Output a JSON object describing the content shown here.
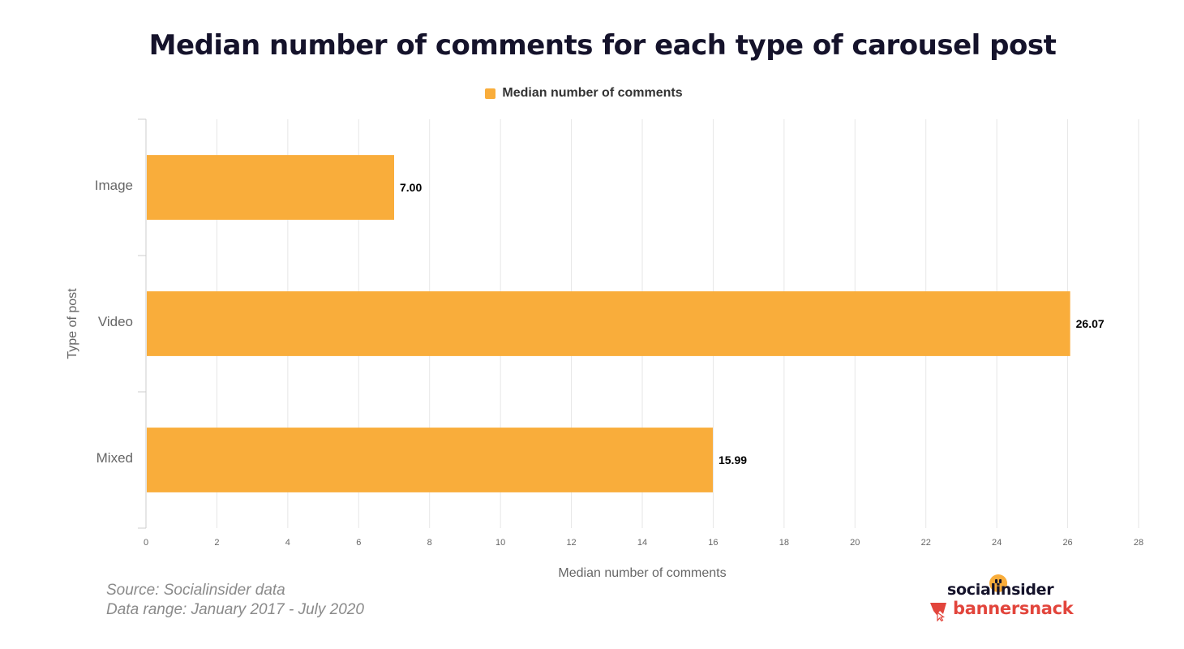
{
  "title": "Median number of comments for each type of carousel post",
  "source_line": "Source: Socialinsider data",
  "range_line": "Data range: January 2017 - July 2020",
  "logos": {
    "top": "socialinsider",
    "bottom": "bannersnack"
  },
  "colors": {
    "bar": "#f9ad3b",
    "grid": "#e6e6e6",
    "axis": "#cccccc",
    "title": "#15132b",
    "brand_red": "#e2453c"
  },
  "chart_data": {
    "type": "bar",
    "orientation": "horizontal",
    "title": "Median number of comments for each type of carousel post",
    "xlabel": "Median number of comments",
    "ylabel": "Type of post",
    "categories": [
      "Image",
      "Video",
      "Mixed"
    ],
    "series": [
      {
        "name": "Median number of comments",
        "values": [
          7.0,
          26.07,
          15.99
        ],
        "labels": [
          "7.00",
          "26.07",
          "15.99"
        ]
      }
    ],
    "xlim": [
      0,
      28
    ],
    "xticks": [
      0,
      2,
      4,
      6,
      8,
      10,
      12,
      14,
      16,
      18,
      20,
      22,
      24,
      26,
      28
    ],
    "grid": true,
    "legend": "top-center"
  }
}
